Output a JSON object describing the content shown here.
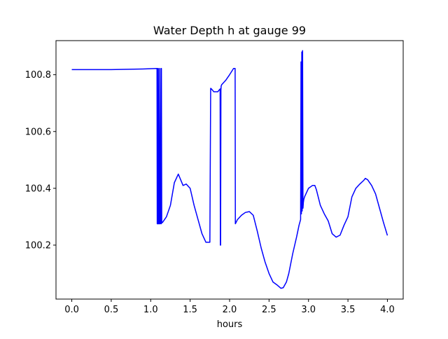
{
  "chart_data": {
    "type": "line",
    "title": "Water Depth h at gauge 99",
    "xlabel": "hours",
    "ylabel": "",
    "xlim": [
      -0.2,
      4.2
    ],
    "ylim": [
      100.01,
      100.92
    ],
    "xticks": [
      0.0,
      0.5,
      1.0,
      1.5,
      2.0,
      2.5,
      3.0,
      3.5,
      4.0
    ],
    "xtick_labels": [
      "0.0",
      "0.5",
      "1.0",
      "1.5",
      "2.0",
      "2.5",
      "3.0",
      "3.5",
      "4.0"
    ],
    "yticks": [
      100.2,
      100.4,
      100.6,
      100.8
    ],
    "ytick_labels": [
      "100.2",
      "100.4",
      "100.6",
      "100.8"
    ],
    "grid": false,
    "series": [
      {
        "color": "#0000ff",
        "x": [
          0.0,
          0.5,
          0.9,
          1.08,
          1.083,
          1.086,
          1.088,
          1.09,
          1.095,
          1.1,
          1.105,
          1.108,
          1.11,
          1.115,
          1.12,
          1.13,
          1.133,
          1.136,
          1.14,
          1.15,
          1.2,
          1.25,
          1.3,
          1.35,
          1.38,
          1.41,
          1.45,
          1.5,
          1.55,
          1.6,
          1.65,
          1.7,
          1.75,
          1.76,
          1.77,
          1.8,
          1.85,
          1.88,
          1.883,
          1.886,
          1.89,
          1.893,
          1.9,
          1.95,
          2.0,
          2.05,
          2.07,
          2.073,
          2.1,
          2.15,
          2.2,
          2.25,
          2.3,
          2.35,
          2.4,
          2.45,
          2.5,
          2.55,
          2.6,
          2.65,
          2.68,
          2.72,
          2.75,
          2.8,
          2.85,
          2.88,
          2.9,
          2.905,
          2.91,
          2.915,
          2.92,
          2.925,
          2.93,
          2.935,
          2.94,
          2.95,
          3.0,
          3.05,
          3.08,
          3.1,
          3.15,
          3.2,
          3.25,
          3.3,
          3.35,
          3.4,
          3.45,
          3.5,
          3.55,
          3.6,
          3.65,
          3.7,
          3.72,
          3.75,
          3.8,
          3.85,
          3.9,
          3.95,
          4.0
        ],
        "y": [
          100.818,
          100.818,
          100.82,
          100.822,
          100.275,
          100.82,
          100.275,
          100.822,
          100.275,
          100.275,
          100.822,
          100.275,
          100.822,
          100.275,
          100.275,
          100.822,
          100.275,
          100.822,
          100.278,
          100.28,
          100.3,
          100.34,
          100.42,
          100.45,
          100.43,
          100.41,
          100.415,
          100.4,
          100.34,
          100.29,
          100.24,
          100.21,
          100.21,
          100.752,
          100.75,
          100.74,
          100.74,
          100.75,
          100.2,
          100.2,
          100.745,
          100.76,
          100.765,
          100.78,
          100.8,
          100.822,
          100.822,
          100.275,
          100.29,
          100.305,
          100.315,
          100.318,
          100.305,
          100.25,
          100.19,
          100.14,
          100.1,
          100.07,
          100.06,
          100.048,
          100.05,
          100.07,
          100.1,
          100.17,
          100.23,
          100.27,
          100.29,
          100.845,
          100.31,
          100.88,
          100.32,
          100.885,
          100.33,
          100.35,
          100.36,
          100.37,
          100.4,
          100.41,
          100.41,
          100.395,
          100.34,
          100.31,
          100.285,
          100.24,
          100.228,
          100.235,
          100.27,
          100.3,
          100.37,
          100.4,
          100.415,
          100.428,
          100.435,
          100.43,
          100.41,
          100.38,
          100.33,
          100.28,
          100.234
        ]
      }
    ]
  }
}
